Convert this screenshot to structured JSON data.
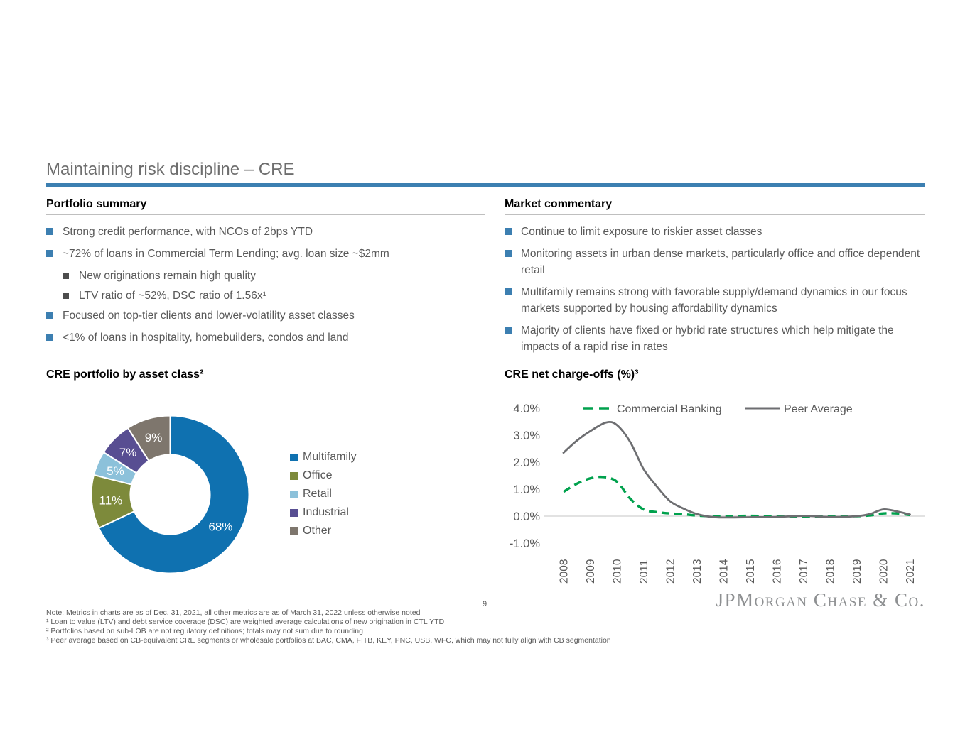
{
  "slide": {
    "title": "Maintaining risk discipline – CRE",
    "page_number": "9",
    "logo_text": "JPMorgan Chase & Co."
  },
  "colors": {
    "accent_blue": "#3C7FB1",
    "body_text": "#595959",
    "sub_bullet_gray": "#4D4D4D",
    "title_gray": "#6E6E6E",
    "divider_gray": "#BFBFBF",
    "logo_gray": "#8E9092",
    "zero_line_gray": "#D9D9D9"
  },
  "sections": {
    "portfolio_summary": {
      "heading": "Portfolio summary",
      "bullets": [
        {
          "level": 1,
          "text": "Strong credit performance, with NCOs of 2bps YTD"
        },
        {
          "level": 1,
          "text": "~72% of loans in Commercial Term Lending; avg. loan size ~$2mm"
        },
        {
          "level": 2,
          "text": "New originations remain high quality"
        },
        {
          "level": 2,
          "text": "LTV ratio of ~52%, DSC ratio of 1.56x¹"
        },
        {
          "level": 1,
          "text": "Focused on top-tier clients and lower-volatility asset classes"
        },
        {
          "level": 1,
          "text": "<1% of loans in hospitality, homebuilders, condos and land"
        }
      ]
    },
    "market_commentary": {
      "heading": "Market commentary",
      "bullets": [
        {
          "level": 1,
          "text": "Continue to limit exposure to riskier asset classes"
        },
        {
          "level": 1,
          "text": "Monitoring assets in urban dense markets, particularly office and office dependent retail"
        },
        {
          "level": 1,
          "text": "Multifamily remains strong with favorable supply/demand dynamics in our focus markets supported by housing affordability dynamics"
        },
        {
          "level": 1,
          "text": "Majority of clients have fixed or hybrid rate structures which help mitigate the impacts of a rapid rise in rates"
        }
      ]
    }
  },
  "chart_data": [
    {
      "type": "pie",
      "variant": "donut",
      "title": "CRE portfolio by asset class²",
      "labels": [
        "Multifamily",
        "Office",
        "Retail",
        "Industrial",
        "Other"
      ],
      "values": [
        68,
        11,
        5,
        7,
        9
      ],
      "value_labels": [
        "68%",
        "11%",
        "5%",
        "7%",
        "9%"
      ],
      "colors": [
        "#0F71B0",
        "#7D8A3B",
        "#8CC1DA",
        "#584E92",
        "#7E766D"
      ],
      "start_angle_deg": 0,
      "direction": "clockwise",
      "legend_position": "right"
    },
    {
      "type": "line",
      "title": "CRE net charge-offs (%)³",
      "x_ticks": [
        "2008",
        "2009",
        "2010",
        "2011",
        "2012",
        "2013",
        "2014",
        "2015",
        "2016",
        "2017",
        "2018",
        "2019",
        "2020",
        "2021"
      ],
      "y_ticks": [
        "4.0%",
        "3.0%",
        "2.0%",
        "1.0%",
        "0.0%",
        "-1.0%"
      ],
      "ylim": [
        -1.0,
        4.0
      ],
      "grid": "zero-line-only",
      "legend_position": "top",
      "series": [
        {
          "name": "Commercial Banking",
          "color": "#00A14D",
          "dashed": true,
          "points": [
            [
              2008,
              0.9
            ],
            [
              2008.5,
              1.2
            ],
            [
              2009,
              1.4
            ],
            [
              2009.5,
              1.45
            ],
            [
              2010,
              1.28
            ],
            [
              2010.5,
              0.65
            ],
            [
              2011,
              0.25
            ],
            [
              2011.5,
              0.15
            ],
            [
              2012,
              0.1
            ],
            [
              2012.5,
              0.07
            ],
            [
              2013,
              0.02
            ],
            [
              2013.5,
              0.0
            ],
            [
              2014,
              0.0
            ],
            [
              2015,
              0.01
            ],
            [
              2016,
              0.0
            ],
            [
              2017,
              -0.02
            ],
            [
              2018,
              0.0
            ],
            [
              2019,
              0.0
            ],
            [
              2019.5,
              0.03
            ],
            [
              2020,
              0.1
            ],
            [
              2020.5,
              0.1
            ],
            [
              2021,
              0.04
            ]
          ]
        },
        {
          "name": "Peer Average",
          "color": "#6D6E71",
          "dashed": false,
          "points": [
            [
              2008,
              2.35
            ],
            [
              2008.5,
              2.8
            ],
            [
              2009,
              3.15
            ],
            [
              2009.6,
              3.47
            ],
            [
              2010,
              3.38
            ],
            [
              2010.5,
              2.75
            ],
            [
              2011,
              1.75
            ],
            [
              2011.5,
              1.1
            ],
            [
              2012,
              0.55
            ],
            [
              2012.5,
              0.28
            ],
            [
              2013,
              0.08
            ],
            [
              2013.5,
              -0.02
            ],
            [
              2014,
              -0.05
            ],
            [
              2015,
              -0.04
            ],
            [
              2016,
              -0.03
            ],
            [
              2017,
              0.01
            ],
            [
              2018,
              -0.03
            ],
            [
              2019,
              0.0
            ],
            [
              2019.5,
              0.08
            ],
            [
              2020,
              0.25
            ],
            [
              2020.5,
              0.18
            ],
            [
              2021,
              0.06
            ]
          ]
        }
      ]
    }
  ],
  "footnotes": [
    "Note: Metrics in charts are as of Dec. 31, 2021, all other metrics are as of March 31, 2022 unless otherwise noted",
    "¹ Loan to value (LTV) and debt service coverage (DSC) are weighted average calculations of new origination in CTL YTD",
    "² Portfolios based on sub-LOB are not regulatory definitions; totals may not sum due to rounding",
    "³ Peer average based on CB-equivalent CRE segments or wholesale portfolios at BAC, CMA, FITB, KEY, PNC, USB, WFC, which may not fully align with CB segmentation"
  ]
}
